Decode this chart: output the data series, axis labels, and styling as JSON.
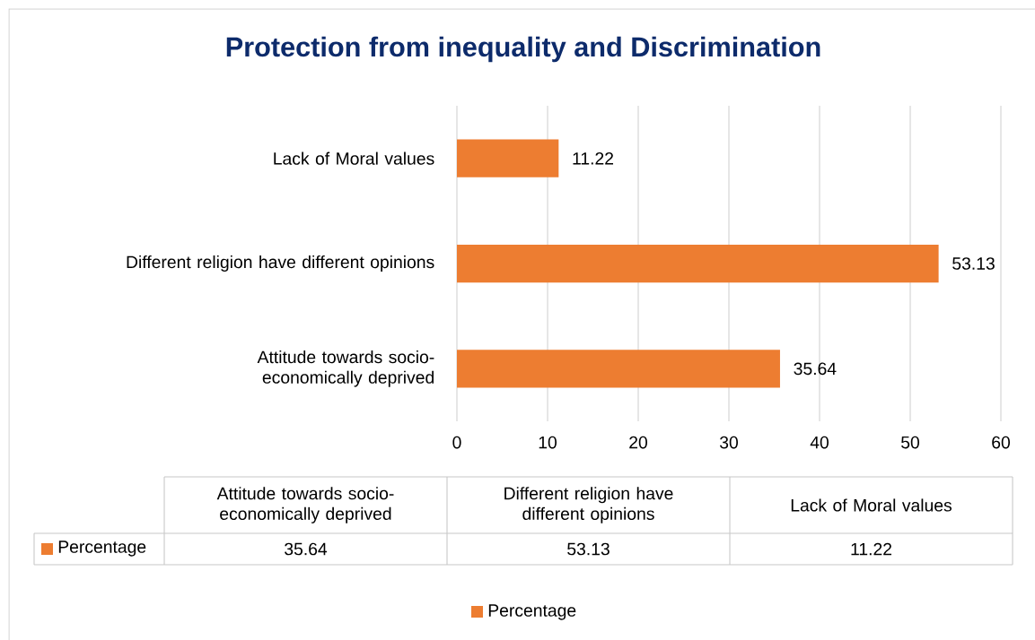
{
  "chart_data": {
    "type": "bar",
    "orientation": "horizontal",
    "title": "Protection from inequality and Discrimination",
    "categories": [
      "Lack of Moral values",
      "Different religion have different opinions",
      "Attitude towards socio-economically deprived"
    ],
    "series": [
      {
        "name": "Percentage",
        "color": "#ed7d31",
        "values": [
          11.22,
          53.13,
          35.64
        ]
      }
    ],
    "annotations": [
      "35.64",
      "53.13",
      "11.22"
    ],
    "xlim": [
      0,
      60
    ],
    "xticks": [
      0,
      10,
      20,
      30,
      40,
      50,
      60
    ],
    "grid": "x",
    "data_labels": true,
    "legend": "bottom"
  }
}
